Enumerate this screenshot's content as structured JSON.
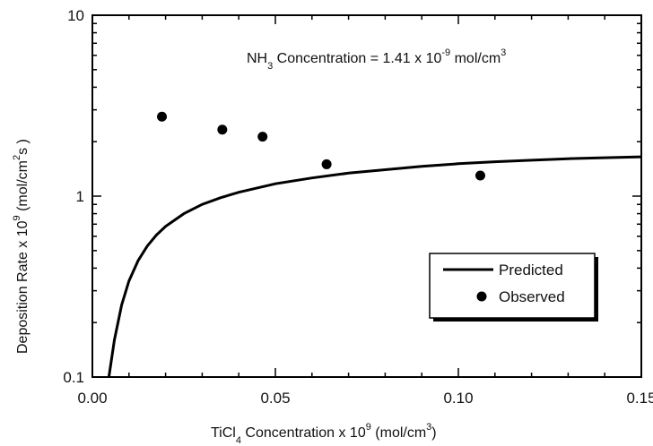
{
  "chart_data": {
    "type": "scatter",
    "x_scale": "linear",
    "y_scale": "log",
    "xlim": [
      0,
      0.15
    ],
    "ylim": [
      0.1,
      10
    ],
    "x_ticks": [
      0.0,
      0.05,
      0.1,
      0.15
    ],
    "x_tick_labels": [
      "0.00",
      "0.05",
      "0.10",
      "0.15"
    ],
    "y_ticks": [
      0.1,
      1,
      10
    ],
    "y_tick_labels": [
      "0.1",
      "1",
      "10"
    ],
    "xlabel": {
      "a": "TiCl",
      "sub": "4",
      "b": " Concentration x 10",
      "sup": "9",
      "c": " (mol/cm",
      "sup2": "3",
      "d": ")"
    },
    "ylabel": {
      "a": "Deposition Rate x 10",
      "sup": "9",
      "b": " (mol/cm",
      "sup2": "2",
      "c": "s )"
    },
    "annotation": {
      "a": "NH",
      "sub": "3",
      "b": " Concentration = 1.41 x 10",
      "sup": "-9",
      "c": " mol/cm",
      "sup2": "3"
    },
    "grid": false,
    "legend_position": "bottom-right",
    "series": [
      {
        "name": "Predicted",
        "kind": "line",
        "color": "#000000",
        "x": [
          0.0045,
          0.006,
          0.008,
          0.01,
          0.0125,
          0.015,
          0.0175,
          0.02,
          0.025,
          0.03,
          0.035,
          0.04,
          0.05,
          0.06,
          0.07,
          0.08,
          0.09,
          0.1,
          0.11,
          0.12,
          0.13,
          0.14,
          0.15
        ],
        "y": [
          0.1,
          0.16,
          0.25,
          0.34,
          0.44,
          0.53,
          0.61,
          0.68,
          0.8,
          0.9,
          0.98,
          1.05,
          1.17,
          1.26,
          1.34,
          1.4,
          1.46,
          1.51,
          1.55,
          1.58,
          1.61,
          1.63,
          1.65
        ]
      },
      {
        "name": "Observed",
        "kind": "scatter",
        "color": "#000000",
        "x": [
          0.019,
          0.0355,
          0.0465,
          0.064,
          0.106
        ],
        "y": [
          2.75,
          2.33,
          2.13,
          1.5,
          1.3
        ]
      }
    ]
  }
}
